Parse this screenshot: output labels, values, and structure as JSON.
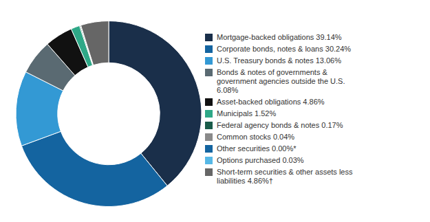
{
  "chart_data": {
    "type": "pie",
    "categories": [
      "Mortgage-backed obligations 39.14%",
      "Corporate bonds, notes & loans 30.24%",
      "U.S. Treasury bonds & notes 13.06%",
      "Bonds & notes of governments &\ngovernment agencies outside the U.S.\n6.08%",
      "Asset-backed obligations 4.86%",
      "Municipals 1.52%",
      "Federal agency bonds & notes 0.17%",
      "Common stocks 0.04%",
      "Other securities 0.00%*",
      "Options purchased 0.03%",
      "Short-term securities & other assets less\nliabilities 4.86%†"
    ],
    "values": [
      39.14,
      30.24,
      13.06,
      6.08,
      4.86,
      1.52,
      0.17,
      0.04,
      0.0,
      0.03,
      4.86
    ],
    "colors": [
      "#1a2f4a",
      "#1464a0",
      "#3399d4",
      "#5a6a72",
      "#111111",
      "#2ea887",
      "#1a5c4a",
      "#8a8a8a",
      "#1464a0",
      "#56b8e6",
      "#666666"
    ],
    "legend": "right"
  }
}
